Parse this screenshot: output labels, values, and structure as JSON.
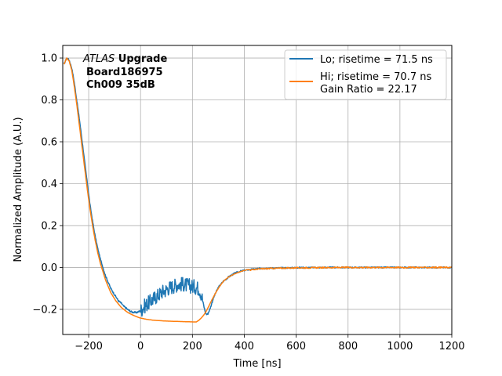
{
  "chart_data": {
    "type": "line",
    "xlabel": "Time [ns]",
    "ylabel": "Normalized Amplitude (A.U.)",
    "xlim": [
      -300,
      1200
    ],
    "ylim": [
      -0.32,
      1.06
    ],
    "xticks": [
      -200,
      0,
      200,
      400,
      600,
      800,
      1000,
      1200
    ],
    "yticks": [
      -0.2,
      0.0,
      0.2,
      0.4,
      0.6,
      0.8,
      1.0
    ],
    "xtick_labels": [
      "−200",
      "0",
      "200",
      "400",
      "600",
      "800",
      "1000",
      "1200"
    ],
    "ytick_labels": [
      "−0.2",
      "0.0",
      "0.2",
      "0.4",
      "0.6",
      "0.8",
      "1.0"
    ],
    "grid": true,
    "legend_position": "top-right",
    "annotation": {
      "line1_italic": "ATLAS",
      "line1_bold": " Upgrade",
      "line2": "Board186975",
      "line3": "Ch009 35dB"
    },
    "series": [
      {
        "name": "Lo; risetime = 71.5 ns",
        "color": "#1f77b4",
        "noisy_region": [
          0,
          240
        ],
        "x": [
          -295,
          -285,
          -275,
          -265,
          -255,
          -245,
          -235,
          -225,
          -215,
          -205,
          -195,
          -185,
          -175,
          -165,
          -155,
          -145,
          -135,
          -125,
          -115,
          -105,
          -95,
          -85,
          -75,
          -65,
          -55,
          -45,
          -35,
          -25,
          -15,
          -5,
          5,
          15,
          25,
          35,
          45,
          55,
          65,
          75,
          85,
          95,
          105,
          115,
          125,
          135,
          145,
          155,
          165,
          175,
          185,
          195,
          205,
          215,
          225,
          235,
          240,
          245,
          250,
          255,
          260,
          270,
          280,
          290,
          300,
          320,
          340,
          360,
          380,
          400,
          420,
          450,
          500,
          550,
          600,
          700,
          800,
          900,
          1000,
          1100,
          1200
        ],
        "y": [
          0.97,
          1.0,
          0.99,
          0.95,
          0.88,
          0.79,
          0.7,
          0.6,
          0.5,
          0.4,
          0.3,
          0.22,
          0.15,
          0.09,
          0.04,
          0.0,
          -0.04,
          -0.07,
          -0.1,
          -0.12,
          -0.14,
          -0.16,
          -0.17,
          -0.185,
          -0.195,
          -0.205,
          -0.212,
          -0.215,
          -0.215,
          -0.21,
          -0.2,
          -0.185,
          -0.175,
          -0.165,
          -0.155,
          -0.145,
          -0.135,
          -0.125,
          -0.115,
          -0.11,
          -0.1,
          -0.095,
          -0.09,
          -0.085,
          -0.08,
          -0.08,
          -0.08,
          -0.085,
          -0.085,
          -0.09,
          -0.09,
          -0.095,
          -0.1,
          -0.13,
          -0.16,
          -0.19,
          -0.215,
          -0.225,
          -0.22,
          -0.19,
          -0.15,
          -0.12,
          -0.095,
          -0.065,
          -0.045,
          -0.03,
          -0.02,
          -0.014,
          -0.01,
          -0.006,
          -0.003,
          -0.002,
          -0.001,
          0.0,
          0.0,
          0.0,
          0.0,
          0.0,
          0.0
        ]
      },
      {
        "name": "Hi; risetime = 70.7 ns\n Gain Ratio = 22.17",
        "color": "#ff7f0e",
        "x": [
          -295,
          -285,
          -275,
          -265,
          -255,
          -245,
          -235,
          -225,
          -215,
          -205,
          -195,
          -185,
          -175,
          -165,
          -155,
          -145,
          -135,
          -125,
          -115,
          -105,
          -95,
          -85,
          -75,
          -65,
          -55,
          -45,
          -35,
          -25,
          -15,
          -5,
          5,
          25,
          50,
          75,
          100,
          125,
          150,
          175,
          200,
          215,
          225,
          235,
          245,
          255,
          265,
          275,
          290,
          305,
          320,
          340,
          360,
          380,
          400,
          415,
          425,
          450,
          500,
          550,
          600,
          700,
          800,
          900,
          1000,
          1100,
          1200
        ],
        "y": [
          0.97,
          1.0,
          0.985,
          0.94,
          0.86,
          0.77,
          0.67,
          0.57,
          0.47,
          0.37,
          0.28,
          0.2,
          0.13,
          0.07,
          0.02,
          -0.02,
          -0.06,
          -0.09,
          -0.12,
          -0.14,
          -0.16,
          -0.175,
          -0.19,
          -0.2,
          -0.21,
          -0.218,
          -0.224,
          -0.23,
          -0.235,
          -0.24,
          -0.243,
          -0.248,
          -0.252,
          -0.254,
          -0.256,
          -0.257,
          -0.258,
          -0.259,
          -0.26,
          -0.26,
          -0.252,
          -0.24,
          -0.225,
          -0.205,
          -0.18,
          -0.155,
          -0.12,
          -0.09,
          -0.065,
          -0.045,
          -0.032,
          -0.022,
          -0.014,
          -0.01,
          -0.012,
          -0.008,
          -0.005,
          -0.003,
          -0.002,
          -0.001,
          0.0,
          0.0,
          0.0,
          0.0,
          0.0
        ]
      }
    ]
  }
}
